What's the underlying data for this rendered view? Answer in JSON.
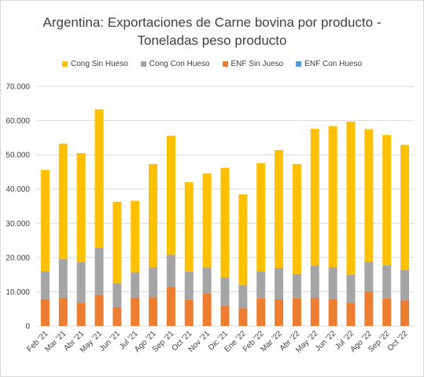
{
  "title_line1": "Argentina: Exportaciones de Carne bovina por producto -",
  "title_line2": "Toneladas peso producto",
  "chart_data": {
    "type": "bar",
    "stacked": true,
    "categories": [
      "Feb '21",
      "Mar '21",
      "Abr '21",
      "May '21",
      "Jun '21",
      "Jul '21",
      "Ago '21",
      "Sep '21",
      "Oct '21",
      "Nov '21",
      "Dic '21",
      "Ene '22",
      "Feb '22",
      "Mar '22",
      "Abr '22",
      "May '22",
      "Jun '22",
      "Jul '22",
      "Ago '22",
      "Sep '22",
      "Oct '22"
    ],
    "series": [
      {
        "name": "ENF Sin Jueso",
        "color": "#ED7D31",
        "values": [
          7800,
          8300,
          6800,
          9200,
          5500,
          8300,
          8400,
          11400,
          7600,
          9400,
          6000,
          5200,
          8100,
          7800,
          8100,
          8300,
          7900,
          6800,
          10000,
          8100,
          7500
        ]
      },
      {
        "name": "ENF Con Hueso",
        "color": "#5B9BD5",
        "values": [
          0,
          0,
          0,
          0,
          0,
          0,
          0,
          0,
          0,
          0,
          0,
          0,
          0,
          0,
          0,
          0,
          0,
          0,
          0,
          0,
          0
        ]
      },
      {
        "name": "Cong Con Hueso",
        "color": "#A5A5A5",
        "values": [
          8200,
          11200,
          11800,
          13600,
          7000,
          7400,
          8700,
          9400,
          8300,
          7700,
          8200,
          6800,
          7900,
          9200,
          7100,
          9300,
          9200,
          8100,
          8800,
          9600,
          8800
        ]
      },
      {
        "name": "Cong Sin Hueso",
        "color": "#FFC000",
        "values": [
          29600,
          33800,
          31900,
          40500,
          23800,
          20900,
          30200,
          34800,
          26100,
          27500,
          32000,
          26500,
          31600,
          34400,
          32100,
          40000,
          41300,
          44800,
          38700,
          38100,
          36600
        ]
      }
    ],
    "legend": [
      {
        "label": "Cong Sin Hueso",
        "color": "#FFC000"
      },
      {
        "label": "Cong Con Hueso",
        "color": "#A5A5A5"
      },
      {
        "label": "ENF Sin Jueso",
        "color": "#ED7D31"
      },
      {
        "label": "ENF Con Hueso",
        "color": "#5B9BD5"
      }
    ],
    "legend_position": "top",
    "ylim": [
      0,
      70000
    ],
    "yticks": [
      "0",
      "10.000",
      "20.000",
      "30.000",
      "40.000",
      "50.000",
      "60.000",
      "70.000"
    ],
    "grid": true,
    "gridColor": "#d9d9d9"
  }
}
